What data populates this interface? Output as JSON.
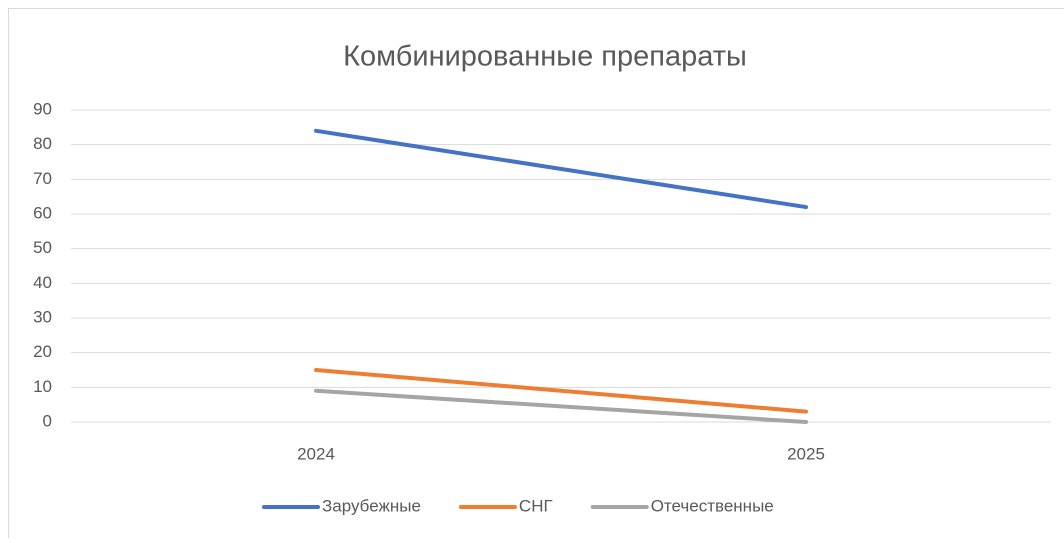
{
  "chart_data": {
    "type": "line",
    "title": "Комбинированные препараты",
    "categories": [
      "2024",
      "2025"
    ],
    "series": [
      {
        "name": "Зарубежные",
        "color": "#4472c4",
        "values": [
          84,
          62
        ]
      },
      {
        "name": "СНГ",
        "color": "#ed7d31",
        "values": [
          15,
          3
        ]
      },
      {
        "name": "Отечественные",
        "color": "#a5a5a5",
        "values": [
          9,
          0
        ]
      }
    ],
    "ylim": [
      0,
      90
    ],
    "yticks": [
      0,
      10,
      20,
      30,
      40,
      50,
      60,
      70,
      80,
      90
    ],
    "grid": true,
    "legend": "bottom"
  }
}
